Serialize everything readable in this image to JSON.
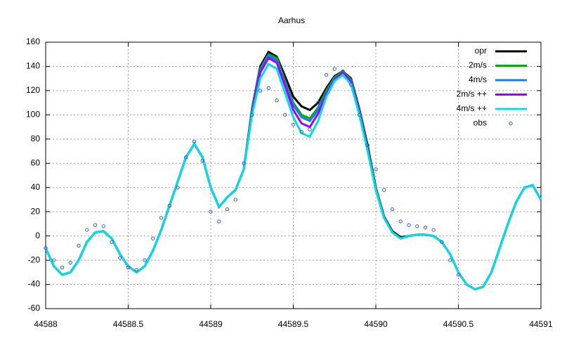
{
  "chart_data": {
    "type": "line",
    "title": "Aarhus",
    "x": [
      44588,
      44588.05,
      44588.1,
      44588.15,
      44588.2,
      44588.25,
      44588.3,
      44588.35,
      44588.4,
      44588.45,
      44588.5,
      44588.55,
      44588.6,
      44588.65,
      44588.7,
      44588.75,
      44588.8,
      44588.85,
      44588.9,
      44588.95,
      44589,
      44589.05,
      44589.1,
      44589.15,
      44589.2,
      44589.25,
      44589.3,
      44589.35,
      44589.4,
      44589.45,
      44589.5,
      44589.55,
      44589.6,
      44589.65,
      44589.7,
      44589.75,
      44589.8,
      44589.85,
      44589.9,
      44589.95,
      44590,
      44590.05,
      44590.1,
      44590.15,
      44590.2,
      44590.25,
      44590.3,
      44590.35,
      44590.4,
      44590.45,
      44590.5,
      44590.55,
      44590.6,
      44590.65,
      44590.7,
      44590.75,
      44590.8,
      44590.85,
      44590.9,
      44590.95,
      44591
    ],
    "series": [
      {
        "name": "opr",
        "color": "#000000",
        "style": "line",
        "values": [
          -10,
          -25,
          -32,
          -30,
          -20,
          -5,
          3,
          4,
          -2,
          -15,
          -25,
          -30,
          -25,
          -12,
          5,
          25,
          45,
          65,
          76,
          65,
          40,
          24,
          32,
          38,
          55,
          105,
          140,
          152,
          148,
          132,
          115,
          107,
          104,
          110,
          122,
          132,
          136,
          130,
          105,
          75,
          40,
          16,
          4,
          -1,
          0,
          1,
          1,
          0,
          -5,
          -15,
          -30,
          -40,
          -44,
          -42,
          -30,
          -10,
          10,
          28,
          40,
          42,
          30
        ]
      },
      {
        "name": "2m/s",
        "color": "#00b000",
        "style": "line",
        "values": [
          -10,
          -25,
          -32,
          -30,
          -20,
          -5,
          3,
          4,
          -2,
          -15,
          -25,
          -30,
          -25,
          -12,
          5,
          25,
          45,
          65,
          76,
          65,
          40,
          24,
          32,
          38,
          55,
          104,
          138,
          150,
          147,
          128,
          110,
          100,
          97,
          106,
          120,
          131,
          136,
          129,
          104,
          73,
          39,
          15,
          3,
          -2,
          0,
          1,
          1,
          0,
          -5,
          -15,
          -30,
          -40,
          -44,
          -42,
          -30,
          -10,
          10,
          28,
          40,
          42,
          30
        ]
      },
      {
        "name": "4m/s",
        "color": "#1e78ff",
        "style": "line",
        "values": [
          -10,
          -25,
          -32,
          -30,
          -20,
          -5,
          3,
          4,
          -2,
          -15,
          -25,
          -30,
          -25,
          -12,
          5,
          25,
          45,
          65,
          76,
          65,
          40,
          24,
          32,
          38,
          55,
          103,
          137,
          149,
          145,
          126,
          108,
          98,
          95,
          104,
          118,
          130,
          135,
          128,
          103,
          72,
          38,
          15,
          3,
          -2,
          0,
          1,
          1,
          0,
          -5,
          -15,
          -30,
          -40,
          -44,
          -42,
          -30,
          -10,
          10,
          28,
          40,
          42,
          30
        ]
      },
      {
        "name": "2m/s ++",
        "color": "#a000ff",
        "style": "line",
        "values": [
          -10,
          -25,
          -32,
          -30,
          -20,
          -5,
          3,
          4,
          -2,
          -15,
          -25,
          -30,
          -25,
          -12,
          5,
          25,
          45,
          65,
          76,
          65,
          40,
          24,
          32,
          38,
          55,
          102,
          135,
          147,
          143,
          124,
          104,
          93,
          90,
          101,
          117,
          129,
          135,
          127,
          102,
          71,
          38,
          15,
          3,
          -2,
          0,
          1,
          1,
          0,
          -5,
          -15,
          -30,
          -40,
          -44,
          -42,
          -30,
          -10,
          10,
          28,
          40,
          42,
          30
        ]
      },
      {
        "name": "4m/s ++",
        "color": "#00e0e0",
        "style": "line",
        "values": [
          -10,
          -25,
          -32,
          -30,
          -20,
          -5,
          3,
          4,
          -2,
          -15,
          -25,
          -30,
          -25,
          -12,
          5,
          25,
          45,
          65,
          76,
          65,
          40,
          24,
          32,
          38,
          55,
          100,
          130,
          142,
          138,
          118,
          98,
          85,
          82,
          95,
          115,
          128,
          133,
          125,
          100,
          70,
          38,
          15,
          3,
          -2,
          0,
          1,
          1,
          0,
          -5,
          -15,
          -30,
          -40,
          -44,
          -42,
          -30,
          -10,
          10,
          28,
          40,
          42,
          30
        ]
      },
      {
        "name": "obs",
        "color": "#3a5fd0",
        "style": "points",
        "x": [
          44588,
          44588.05,
          44588.1,
          44588.15,
          44588.2,
          44588.25,
          44588.3,
          44588.35,
          44588.4,
          44588.45,
          44588.5,
          44588.55,
          44588.6,
          44588.65,
          44588.7,
          44588.75,
          44588.8,
          44588.85,
          44588.9,
          44588.95,
          44589,
          44589.05,
          44589.1,
          44589.15,
          44589.2,
          44589.25,
          44589.3,
          44589.35,
          44589.4,
          44589.45,
          44589.5,
          44589.55,
          44589.6,
          44589.65,
          44589.7,
          44589.75,
          44589.8,
          44589.85,
          44589.9,
          44589.95,
          44590,
          44590.05,
          44590.1,
          44590.15,
          44590.2,
          44590.25,
          44590.3,
          44590.35,
          44590.4,
          44590.45,
          44590.5
        ],
        "values": [
          -10,
          -20,
          -26,
          -22,
          -8,
          5,
          9,
          8,
          -5,
          -18,
          -26,
          -28,
          -20,
          -2,
          15,
          25,
          40,
          65,
          78,
          62,
          20,
          12,
          22,
          30,
          60,
          100,
          120,
          122,
          112,
          100,
          92,
          86,
          88,
          110,
          133,
          138,
          136,
          125,
          100,
          75,
          55,
          38,
          22,
          12,
          9,
          8,
          7,
          5,
          -5,
          -20,
          -32
        ]
      }
    ],
    "xlim": [
      44588,
      44591
    ],
    "xticks": [
      44588,
      44588.5,
      44589,
      44589.5,
      44590,
      44590.5,
      44591
    ],
    "ylim": [
      -60,
      160
    ],
    "yticks": [
      -60,
      -40,
      -20,
      0,
      20,
      40,
      60,
      80,
      100,
      120,
      140,
      160
    ],
    "grid": true,
    "legend": "top-right"
  }
}
